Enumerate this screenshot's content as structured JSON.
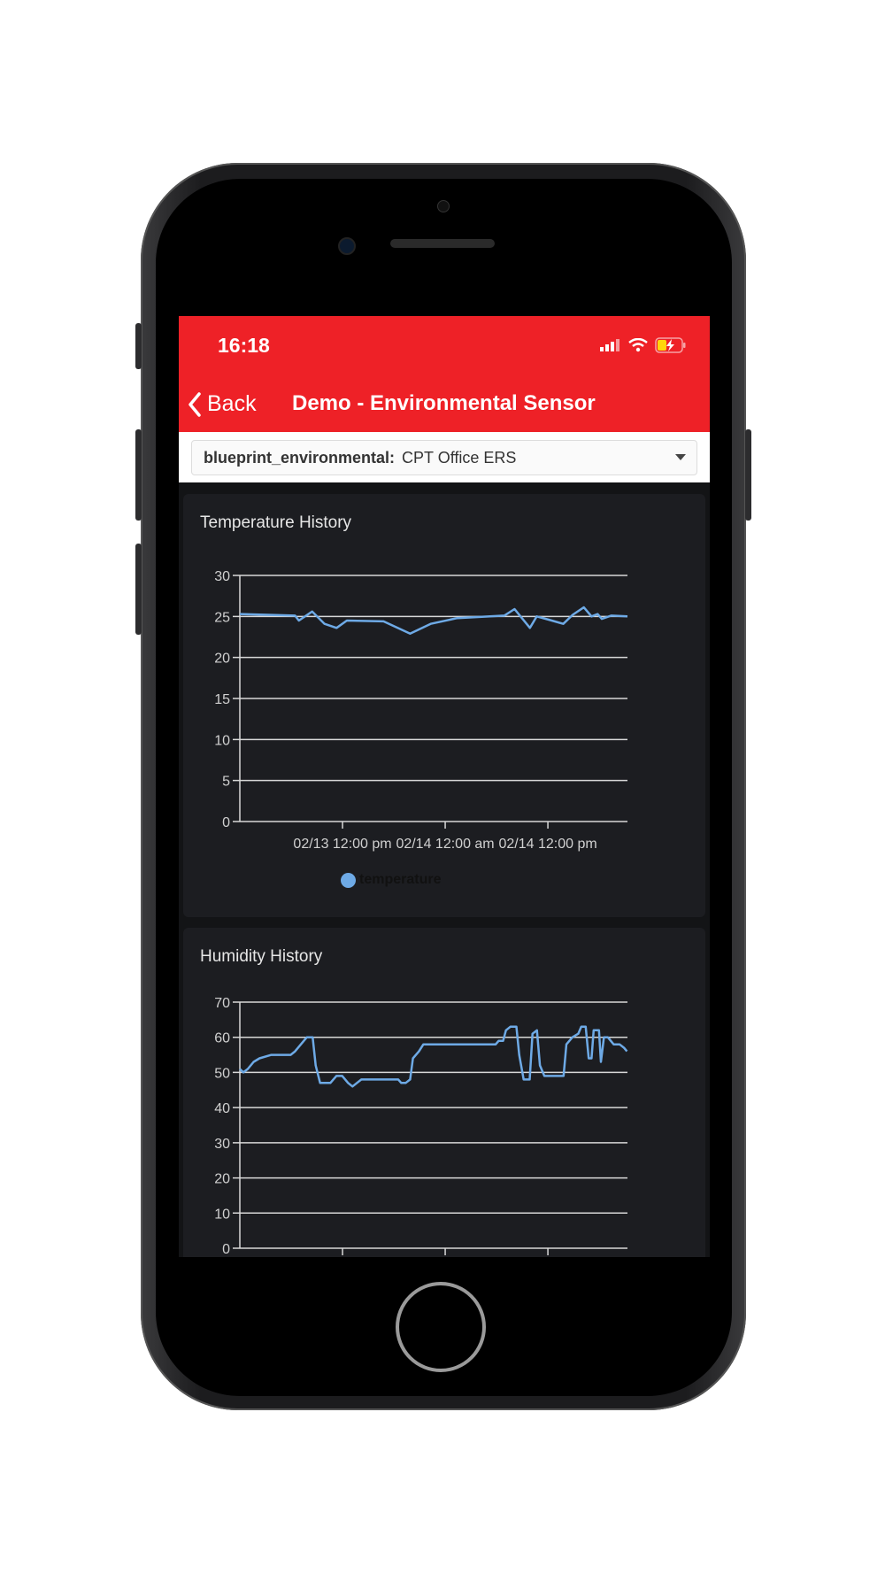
{
  "status_bar": {
    "time": "16:18",
    "icons": [
      "signal-icon",
      "wifi-icon",
      "battery-charging-icon"
    ]
  },
  "nav": {
    "back_label": "Back",
    "title": "Demo - Environmental Sensor"
  },
  "device_select": {
    "label": "blueprint_environmental:",
    "value": "CPT Office ERS"
  },
  "colors": {
    "header": "#ee2127",
    "line": "#6eaae6",
    "card": "#1c1d21"
  },
  "chart_data": [
    {
      "type": "line",
      "title": "Temperature History",
      "ylim": [
        0,
        30
      ],
      "yticks": [
        "0",
        "5",
        "10",
        "15",
        "20",
        "25",
        "30"
      ],
      "xlim": [
        "02/13 00:00",
        "02/14 21:18"
      ],
      "xticks": [
        {
          "at": "02/13 12:00",
          "label": "02/13 12:00 pm"
        },
        {
          "at": "02/14 00:00",
          "label": "02/14 12:00 am"
        },
        {
          "at": "02/14 12:00",
          "label": "02/14 12:00 pm"
        }
      ],
      "grid": true,
      "legend": "bottom",
      "series": [
        {
          "name": "temperature",
          "points": [
            [
              "02/13 00:00",
              25.3
            ],
            [
              "02/13 06:27",
              25.1
            ],
            [
              "02/13 06:54",
              24.5
            ],
            [
              "02/13 08:27",
              25.6
            ],
            [
              "02/13 09:54",
              24.1
            ],
            [
              "02/13 11:18",
              23.6
            ],
            [
              "02/13 12:30",
              24.5
            ],
            [
              "02/13 16:48",
              24.4
            ],
            [
              "02/13 19:54",
              22.9
            ],
            [
              "02/13 22:18",
              24.1
            ],
            [
              "02/14 01:24",
              24.8
            ],
            [
              "02/14 06:54",
              25.1
            ],
            [
              "02/14 08:06",
              25.9
            ],
            [
              "02/14 09:54",
              23.6
            ],
            [
              "02/14 10:42",
              25.0
            ],
            [
              "02/14 12:06",
              24.6
            ],
            [
              "02/14 13:48",
              24.1
            ],
            [
              "02/14 14:54",
              25.2
            ],
            [
              "02/14 16:12",
              26.1
            ],
            [
              "02/14 17:06",
              25.0
            ],
            [
              "02/14 17:48",
              25.3
            ],
            [
              "02/14 18:18",
              24.7
            ],
            [
              "02/14 19:24",
              25.1
            ],
            [
              "02/14 21:18",
              25.0
            ]
          ]
        }
      ]
    },
    {
      "type": "line",
      "title": "Humidity History",
      "ylim": [
        0,
        70
      ],
      "yticks": [
        "0",
        "10",
        "20",
        "30",
        "40",
        "50",
        "60",
        "70"
      ],
      "xlim": [
        "02/13 00:00",
        "02/14 21:18"
      ],
      "xticks": [
        {
          "at": "02/13 12:00",
          "label": ""
        },
        {
          "at": "02/14 00:00",
          "label": ""
        },
        {
          "at": "02/14 12:00",
          "label": ""
        }
      ],
      "grid": true,
      "series": [
        {
          "points": [
            [
              "02/13 00:00",
              51
            ],
            [
              "02/13 00:25",
              50
            ],
            [
              "02/13 00:56",
              51
            ],
            [
              "02/13 01:37",
              53
            ],
            [
              "02/13 02:18",
              54
            ],
            [
              "02/13 03:41",
              55
            ],
            [
              "02/13 05:56",
              55
            ],
            [
              "02/13 06:27",
              56
            ],
            [
              "02/13 07:08",
              58
            ],
            [
              "02/13 07:50",
              60
            ],
            [
              "02/13 08:31",
              60
            ],
            [
              "02/13 08:52",
              52
            ],
            [
              "02/13 09:23",
              47
            ],
            [
              "02/13 10:35",
              47
            ],
            [
              "02/13 11:17",
              49
            ],
            [
              "02/13 11:58",
              49
            ],
            [
              "02/13 12:39",
              47
            ],
            [
              "02/13 13:10",
              46
            ],
            [
              "02/13 13:41",
              47
            ],
            [
              "02/13 14:12",
              48
            ],
            [
              "02/13 18:31",
              48
            ],
            [
              "02/13 18:52",
              47
            ],
            [
              "02/13 19:23",
              47
            ],
            [
              "02/13 19:54",
              48
            ],
            [
              "02/13 20:14",
              54
            ],
            [
              "02/13 20:56",
              56
            ],
            [
              "02/13 21:27",
              58
            ],
            [
              "02/14 05:54",
              58
            ],
            [
              "02/14 06:15",
              59
            ],
            [
              "02/14 06:46",
              59
            ],
            [
              "02/14 07:06",
              62
            ],
            [
              "02/14 07:37",
              63
            ],
            [
              "02/14 08:19",
              63
            ],
            [
              "02/14 08:39",
              55
            ],
            [
              "02/14 09:10",
              48
            ],
            [
              "02/14 09:52",
              48
            ],
            [
              "02/14 10:12",
              61
            ],
            [
              "02/14 10:43",
              62
            ],
            [
              "02/14 11:04",
              52
            ],
            [
              "02/14 11:35",
              49
            ],
            [
              "02/14 13:50",
              49
            ],
            [
              "02/14 14:10",
              58
            ],
            [
              "02/14 14:52",
              60
            ],
            [
              "02/14 15:33",
              61
            ],
            [
              "02/14 15:54",
              63
            ],
            [
              "02/14 16:25",
              63
            ],
            [
              "02/14 16:46",
              54
            ],
            [
              "02/14 17:06",
              54
            ],
            [
              "02/14 17:21",
              62
            ],
            [
              "02/14 17:58",
              62
            ],
            [
              "02/14 18:12",
              53
            ],
            [
              "02/14 18:33",
              60
            ],
            [
              "02/14 19:00",
              60
            ],
            [
              "02/14 19:21",
              59
            ],
            [
              "02/14 19:41",
              58
            ],
            [
              "02/14 20:23",
              58
            ],
            [
              "02/14 20:54",
              57
            ],
            [
              "02/14 21:14",
              56
            ]
          ]
        }
      ]
    }
  ]
}
